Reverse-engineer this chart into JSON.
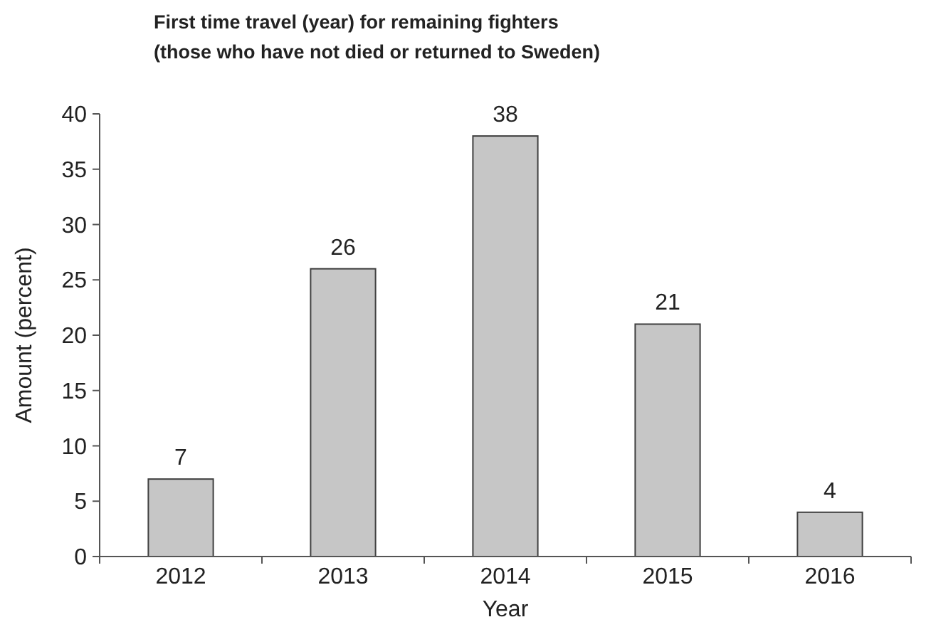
{
  "chart_data": {
    "type": "bar",
    "title": "First time travel (year) for remaining fighters\n(those who have not died or returned to Sweden)",
    "xlabel": "Year",
    "ylabel": "Amount (percent)",
    "categories": [
      "2012",
      "2013",
      "2014",
      "2015",
      "2016"
    ],
    "values": [
      7,
      26,
      38,
      21,
      4
    ],
    "color": "#c6c6c6",
    "ylim": [
      0,
      40
    ],
    "yticks": [
      0,
      5,
      10,
      15,
      20,
      25,
      30,
      35,
      40
    ],
    "grid": false,
    "data_labels": true
  }
}
